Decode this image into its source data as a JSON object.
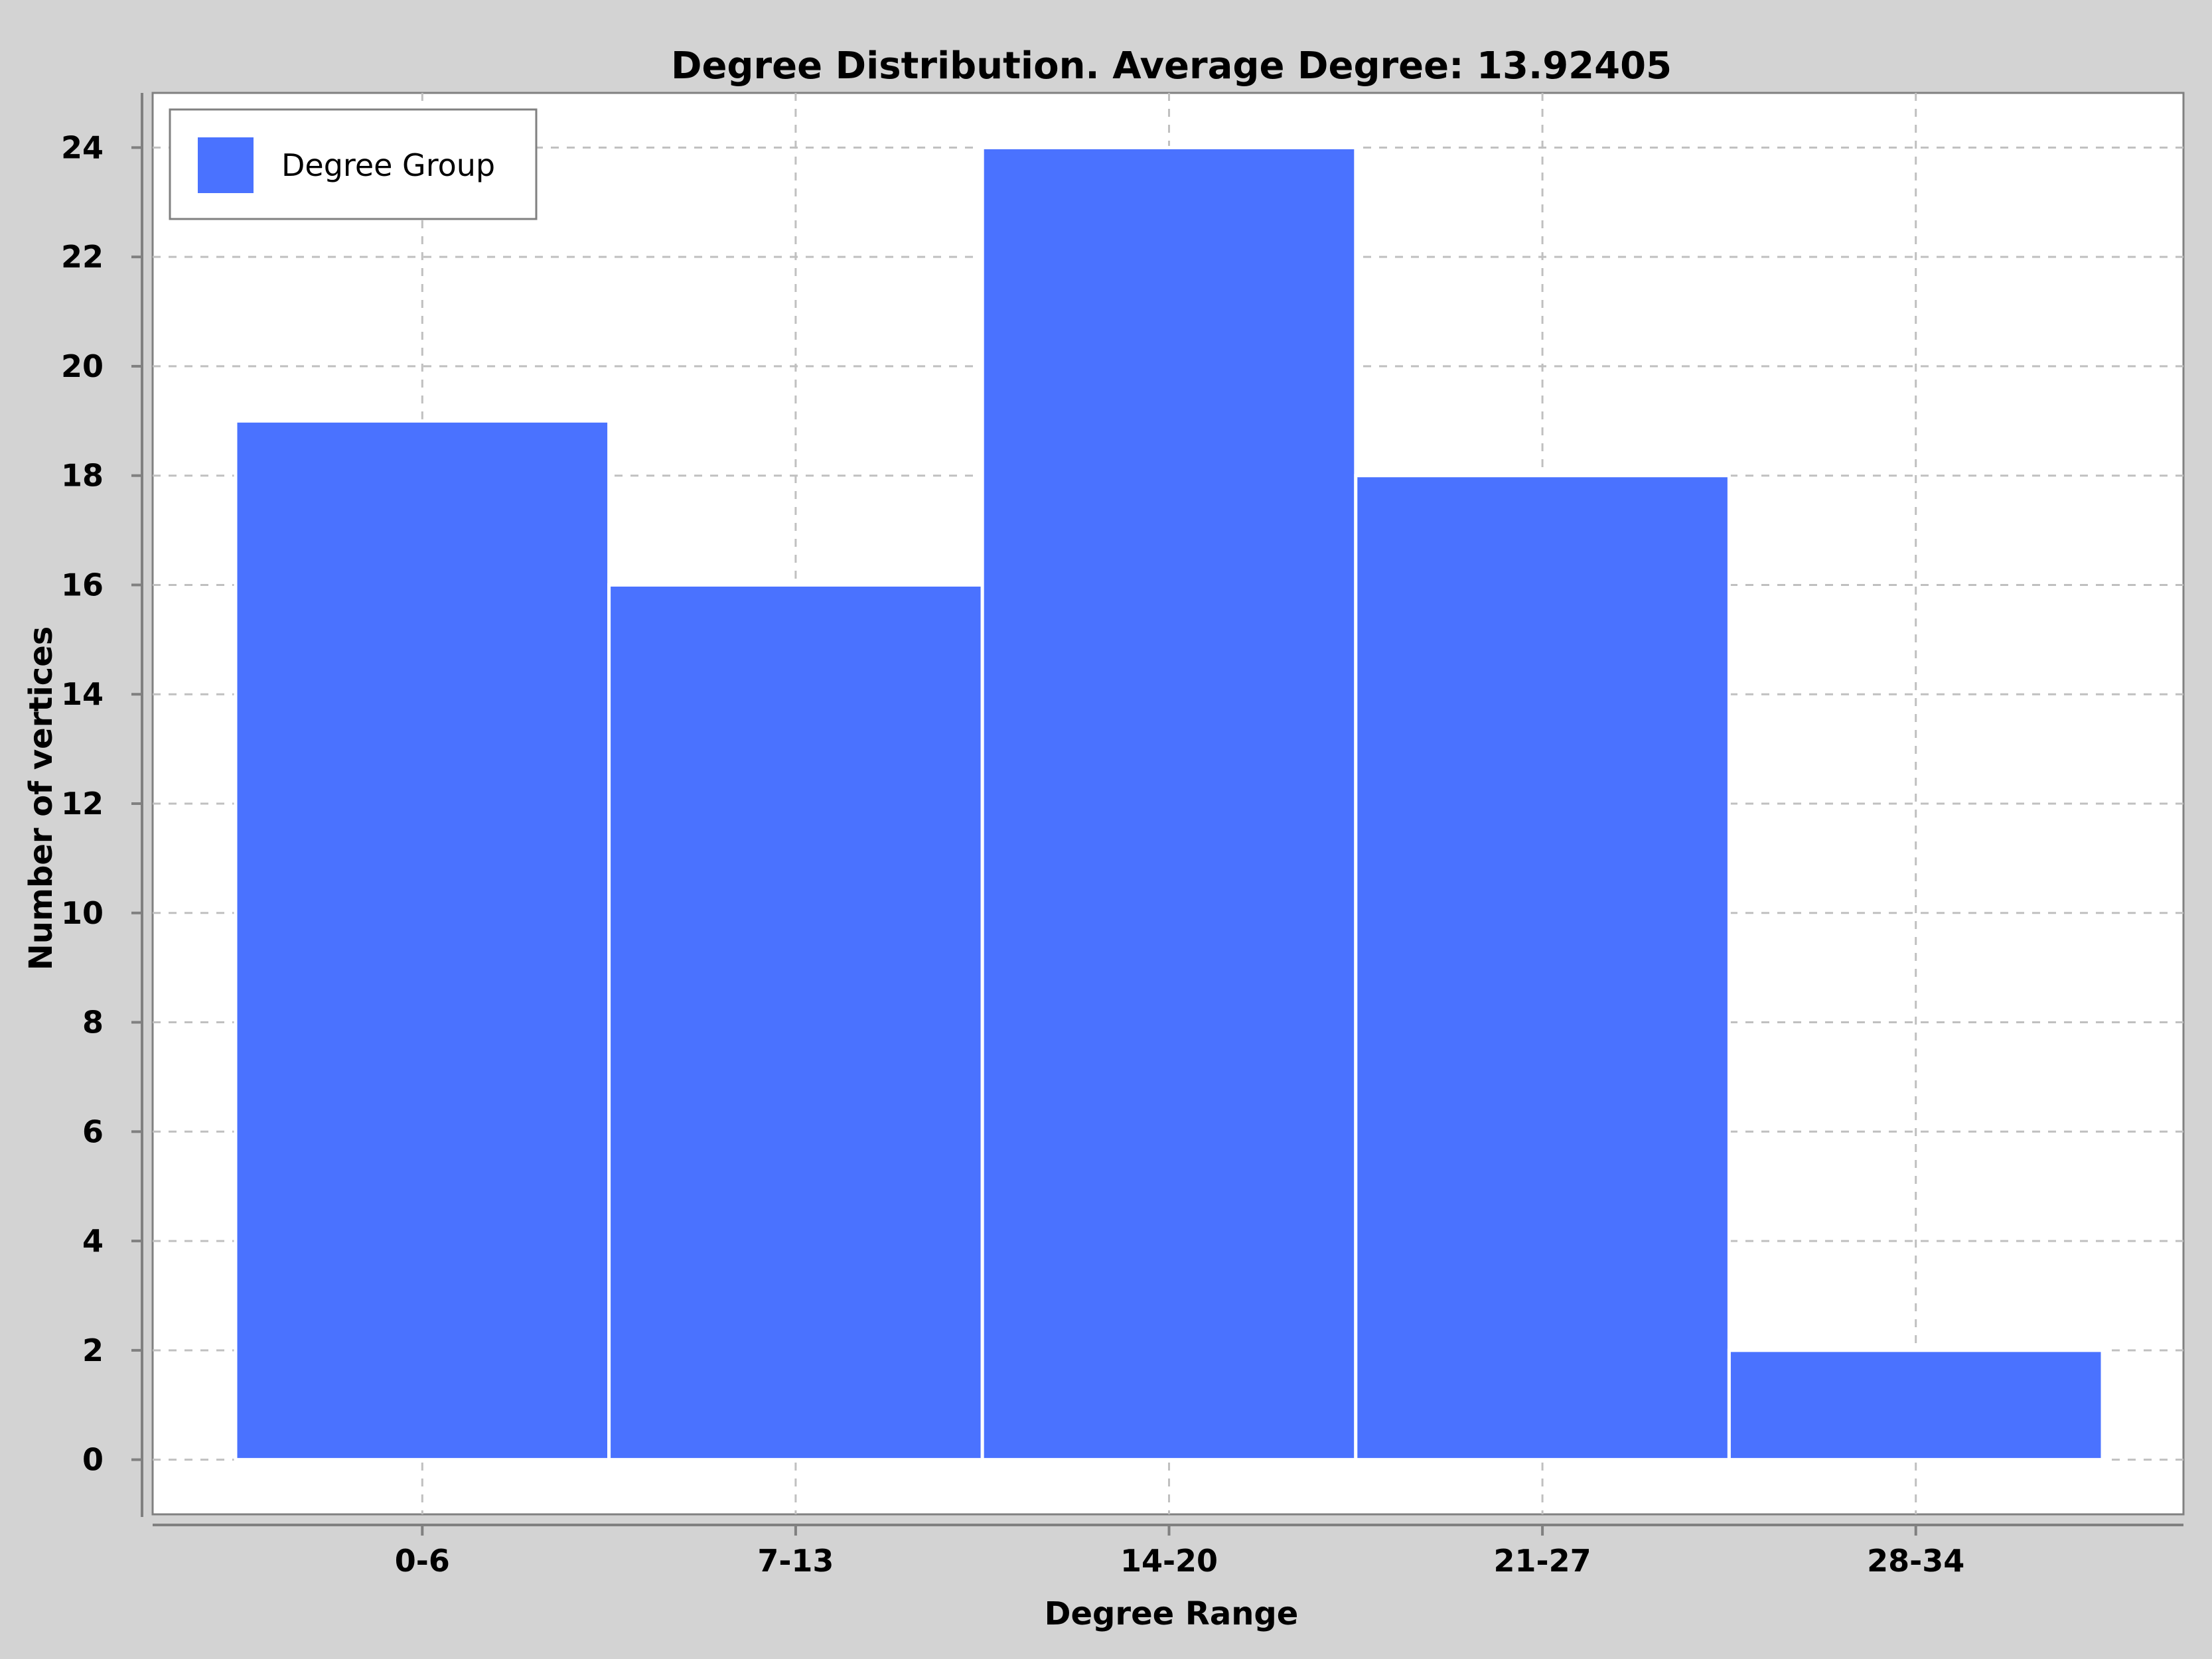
{
  "chart_data": {
    "type": "bar",
    "title": "Degree Distribution. Average Degree: 13.92405",
    "xlabel": "Degree Range",
    "ylabel": "Number of vertices",
    "categories": [
      "0-6",
      "7-13",
      "14-20",
      "21-27",
      "28-34"
    ],
    "series": [
      {
        "name": "Degree Group",
        "values": [
          19,
          16,
          24,
          18,
          2
        ]
      }
    ],
    "ylim": [
      -1,
      25
    ],
    "yticks": [
      0,
      2,
      4,
      6,
      8,
      10,
      12,
      14,
      16,
      18,
      20,
      22,
      24
    ],
    "grid": true,
    "legend_position": "top-left",
    "colors": {
      "bar": "#4a72ff",
      "background": "#d3d3d3",
      "plot_background": "#ffffff",
      "grid": "#c0c0c0",
      "axis": "#808080"
    }
  }
}
